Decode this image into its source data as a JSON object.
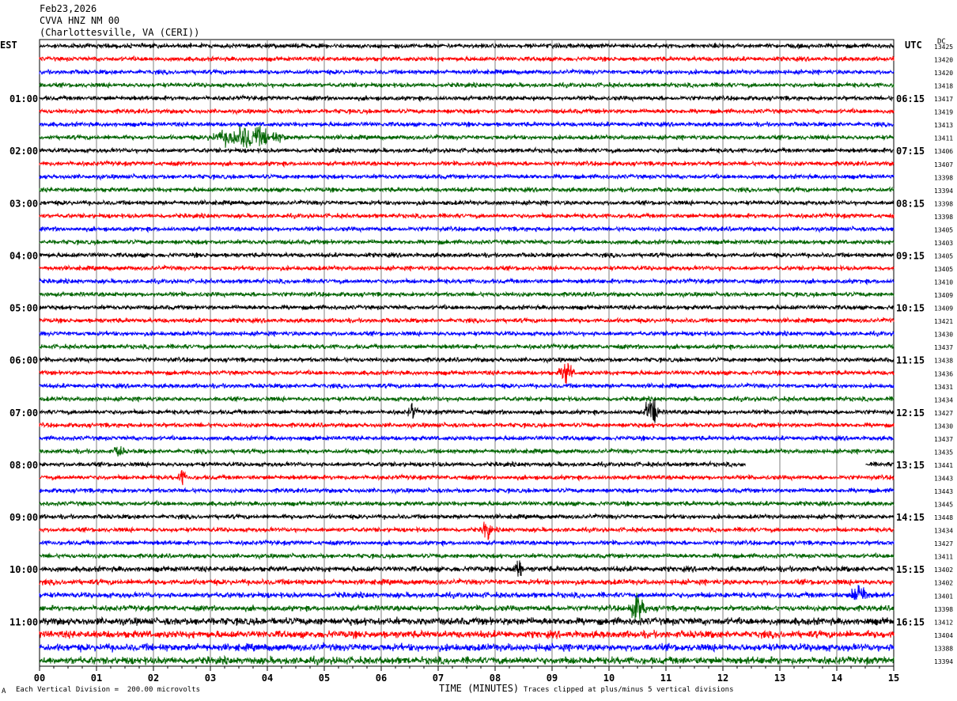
{
  "header": {
    "date": "Feb23,2026",
    "station": "CVVA HNZ NM 00",
    "location": "(Charlottesville, VA (CERI))"
  },
  "left_timezone": "EST",
  "right_timezone": "UTC",
  "dc_label": "DC",
  "footer": {
    "scale_note": "Each Vertical Division =  200.00 microvolts",
    "clip_note": "Traces clipped at plus/minus 5 vertical divisions",
    "corner_mark": "A"
  },
  "colors": {
    "black": "#000000",
    "red": "#ff0000",
    "blue": "#0000ff",
    "green": "#006400",
    "grid": "#808080"
  },
  "chart_data": {
    "type": "line",
    "title": "CVVA HNZ NM 00",
    "xlabel": "TIME (MINUTES)",
    "xlim": [
      0,
      15
    ],
    "x_ticks": [
      "00",
      "01",
      "02",
      "03",
      "04",
      "05",
      "06",
      "07",
      "08",
      "09",
      "10",
      "11",
      "12",
      "13",
      "14",
      "15"
    ],
    "left_hour_labels": [
      "01:00",
      "02:00",
      "03:00",
      "04:00",
      "05:00",
      "06:00",
      "07:00",
      "08:00",
      "09:00",
      "10:00",
      "11:00"
    ],
    "right_hour_labels": [
      "06:15",
      "07:15",
      "08:15",
      "09:15",
      "10:15",
      "11:15",
      "12:15",
      "13:15",
      "14:15",
      "15:15",
      "16:15"
    ],
    "trace_colors_cycle": [
      "black",
      "red",
      "blue",
      "green"
    ],
    "dc_offsets": [
      "13425",
      "13420",
      "13420",
      "13418",
      "13417",
      "13419",
      "13413",
      "13411",
      "13406",
      "13407",
      "13398",
      "13394",
      "13398",
      "13398",
      "13405",
      "13403",
      "13405",
      "13405",
      "13410",
      "13409",
      "13409",
      "13421",
      "13430",
      "13437",
      "13438",
      "13436",
      "13431",
      "13434",
      "13427",
      "13430",
      "13437",
      "13435",
      "13441",
      "13443",
      "13443",
      "13445",
      "13448",
      "13434",
      "13427",
      "13411",
      "13402",
      "13402",
      "13401",
      "13398",
      "13412",
      "13404",
      "13388",
      "13394"
    ],
    "traces_count": 48,
    "minutes_per_trace": 15,
    "data_gap": {
      "trace": 32,
      "start_min": 12.4,
      "end_min": 14.5
    },
    "events": [
      {
        "trace": 7,
        "start_min": 2.9,
        "end_min": 4.4,
        "amp": 2.0
      },
      {
        "trace": 25,
        "start_min": 9.1,
        "end_min": 9.4,
        "amp": 2.2
      },
      {
        "trace": 28,
        "start_min": 10.6,
        "end_min": 10.9,
        "amp": 3.0
      },
      {
        "trace": 28,
        "start_min": 6.45,
        "end_min": 6.65,
        "amp": 1.5
      },
      {
        "trace": 33,
        "start_min": 2.4,
        "end_min": 2.6,
        "amp": 1.4
      },
      {
        "trace": 37,
        "start_min": 7.75,
        "end_min": 7.95,
        "amp": 2.2
      },
      {
        "trace": 40,
        "start_min": 8.3,
        "end_min": 8.5,
        "amp": 1.5
      },
      {
        "trace": 42,
        "start_min": 14.2,
        "end_min": 14.6,
        "amp": 1.6
      },
      {
        "trace": 43,
        "start_min": 10.3,
        "end_min": 10.7,
        "amp": 1.8
      },
      {
        "trace": 31,
        "start_min": 1.3,
        "end_min": 1.5,
        "amp": 1.3
      }
    ]
  }
}
